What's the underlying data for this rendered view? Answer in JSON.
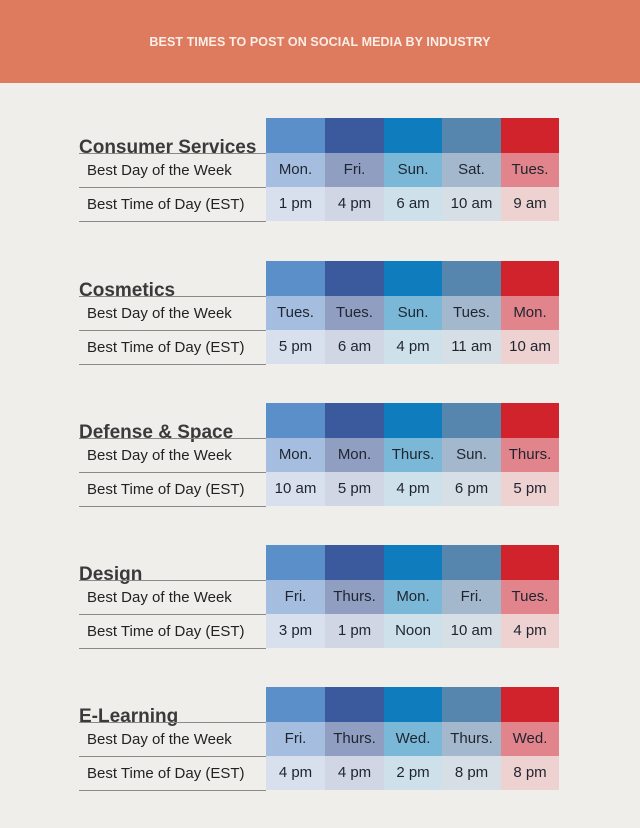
{
  "header": {
    "title": "BEST TIMES TO POST ON SOCIAL MEDIA BY INDUSTRY"
  },
  "row_labels": {
    "day": "Best Day of the Week",
    "time": "Best Time of Day (EST)"
  },
  "colors": {
    "banner": "#de7b5e",
    "column_header": [
      "#5b8fc9",
      "#3b5a9e",
      "#0f7dbd",
      "#5685ad",
      "#d0232b"
    ],
    "day_row": [
      "#a5bedf",
      "#909ec2",
      "#7bb8d7",
      "#a3b8cd",
      "#e1848b"
    ],
    "time_row": [
      "#d7e0ec",
      "#d0d6e3",
      "#cee0ea",
      "#d6dee6",
      "#eed1d1"
    ]
  },
  "industries": [
    {
      "name": "Consumer Services",
      "days": [
        "Mon.",
        "Fri.",
        "Sun.",
        "Sat.",
        "Tues."
      ],
      "times": [
        "1 pm",
        "4 pm",
        "6 am",
        "10 am",
        "9 am"
      ]
    },
    {
      "name": "Cosmetics",
      "days": [
        "Tues.",
        "Tues.",
        "Sun.",
        "Tues.",
        "Mon."
      ],
      "times": [
        "5 pm",
        "6 am",
        "4 pm",
        "11 am",
        "10 am"
      ]
    },
    {
      "name": "Defense & Space",
      "days": [
        "Mon.",
        "Mon.",
        "Thurs.",
        "Sun.",
        "Thurs."
      ],
      "times": [
        "10 am",
        "5 pm",
        "4 pm",
        "6 pm",
        "5 pm"
      ]
    },
    {
      "name": "Design",
      "days": [
        "Fri.",
        "Thurs.",
        "Mon.",
        "Fri.",
        "Tues."
      ],
      "times": [
        "3 pm",
        "1 pm",
        "Noon",
        "10 am",
        "4 pm"
      ]
    },
    {
      "name": "E-Learning",
      "days": [
        "Fri.",
        "Thurs.",
        "Wed.",
        "Thurs.",
        "Wed."
      ],
      "times": [
        "4 pm",
        "4 pm",
        "2 pm",
        "8 pm",
        "8 pm"
      ]
    }
  ]
}
